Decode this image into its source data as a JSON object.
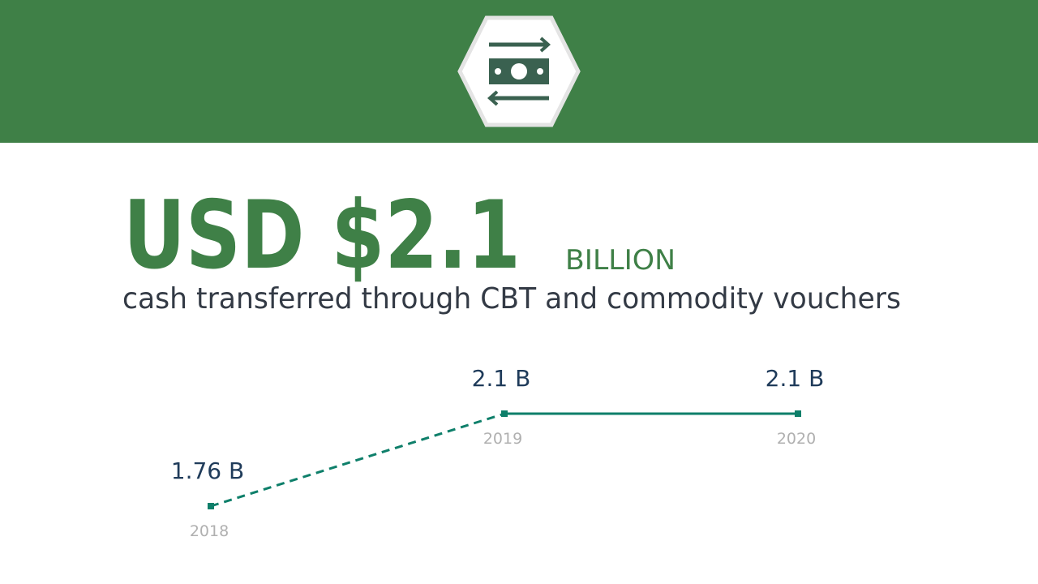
{
  "headline": {
    "amount": "USD $2.1",
    "unit": "BILLION",
    "caption": "cash transferred through CBT and commodity vouchers"
  },
  "chart_data": {
    "type": "line",
    "x": [
      "2018",
      "2019",
      "2020"
    ],
    "series": [
      {
        "color": "#0e7f6a",
        "values": [
          1.76,
          2.1,
          2.1
        ],
        "value_labels": [
          "1.76 B",
          "2.1 B",
          "2.1 B"
        ]
      }
    ]
  }
}
